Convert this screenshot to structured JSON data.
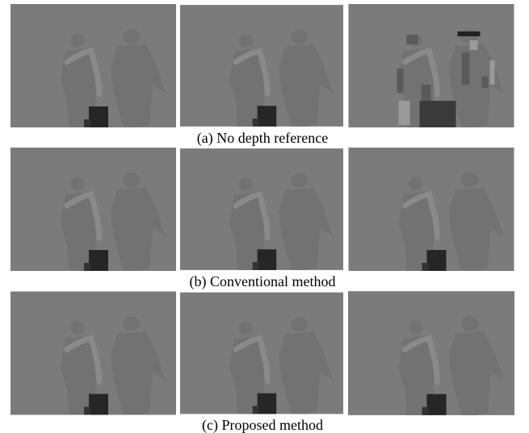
{
  "figure": {
    "rows": [
      {
        "caption": "(a) No depth reference"
      },
      {
        "caption": "(b) Conventional method"
      },
      {
        "caption": "(c) Proposed method"
      }
    ]
  }
}
